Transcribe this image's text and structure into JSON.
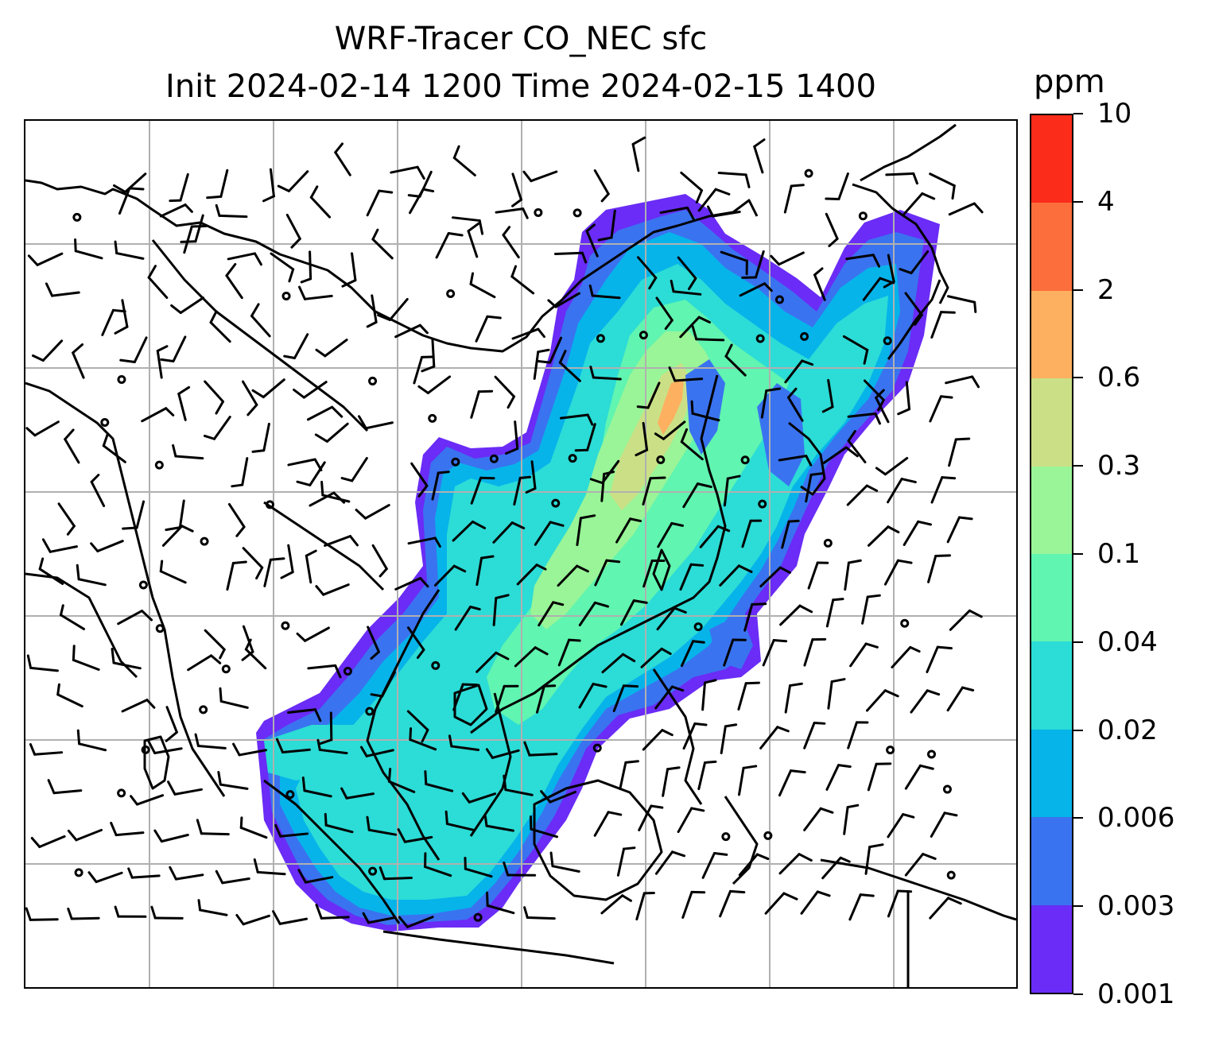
{
  "title": {
    "line1": "WRF-Tracer CO_NEC sfc",
    "line2": "Init 2024-02-14 1200 Time 2024-02-15 1400"
  },
  "colorbar": {
    "unit": "ppm",
    "levels": [
      "0.001",
      "0.003",
      "0.006",
      "0.02",
      "0.04",
      "0.1",
      "0.3",
      "0.6",
      "2",
      "4",
      "10"
    ],
    "colors": [
      "#6a2cf6",
      "#3a73f0",
      "#06b4ea",
      "#2cdcd6",
      "#60f5b0",
      "#99f597",
      "#cbe086",
      "#fdb060",
      "#fc6e3c",
      "#fb2c1a"
    ]
  },
  "map": {
    "projection": "regional lat-lon map, East/Southeast Asia",
    "gridlines": true,
    "features": [
      "coastlines",
      "country borders",
      "wind barbs",
      "calm-wind circles",
      "filled tracer concentration"
    ],
    "line_color": "#000000",
    "grid_color": "#b0b0b0"
  }
}
